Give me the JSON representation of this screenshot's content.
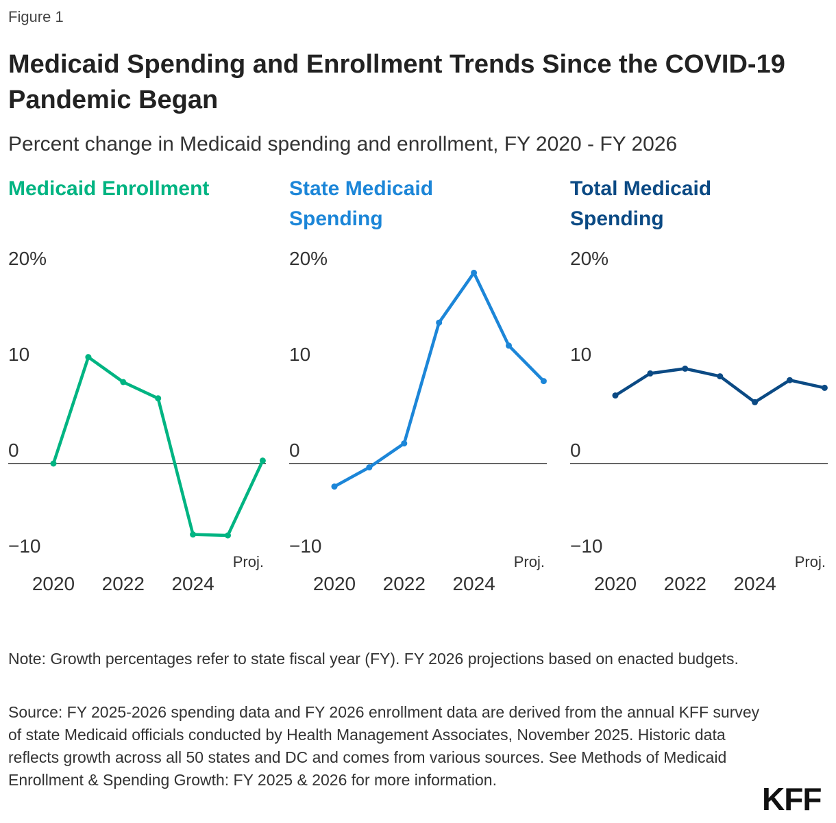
{
  "figure_label": "Figure 1",
  "title": "Medicaid Spending and Enrollment Trends Since the COVID-19 Pandemic Began",
  "subtitle": "Percent change in Medicaid spending and enrollment, FY 2020 - FY 2026",
  "chart_data": [
    {
      "type": "line",
      "title": "Medicaid Enrollment",
      "color": "#00b482",
      "x": [
        2020,
        2021,
        2022,
        2023,
        2024,
        2025,
        2026
      ],
      "values": [
        0.0,
        11.1,
        8.5,
        6.8,
        -7.4,
        -7.5,
        0.3
      ],
      "ylim": [
        -10,
        20
      ],
      "yticks": [
        "20%",
        "10",
        "0",
        "−10"
      ],
      "xticks": [
        "2020",
        "2022",
        "2024"
      ],
      "annotation": "Proj."
    },
    {
      "type": "line",
      "title": "State Medicaid Spending",
      "color": "#1c86d8",
      "x": [
        2020,
        2021,
        2022,
        2023,
        2024,
        2025,
        2026
      ],
      "values": [
        -2.4,
        -0.4,
        2.1,
        14.7,
        19.9,
        12.3,
        8.6
      ],
      "ylim": [
        -10,
        20
      ],
      "yticks": [
        "20%",
        "10",
        "0",
        "−10"
      ],
      "xticks": [
        "2020",
        "2022",
        "2024"
      ],
      "annotation": "Proj."
    },
    {
      "type": "line",
      "title": "Total Medicaid Spending",
      "color": "#0b4a84",
      "x": [
        2020,
        2021,
        2022,
        2023,
        2024,
        2025,
        2026
      ],
      "values": [
        7.1,
        9.4,
        9.9,
        9.1,
        6.4,
        8.7,
        7.9
      ],
      "ylim": [
        -10,
        20
      ],
      "yticks": [
        "20%",
        "10",
        "0",
        "−10"
      ],
      "xticks": [
        "2020",
        "2022",
        "2024"
      ],
      "annotation": "Proj."
    }
  ],
  "note": "Note: Growth percentages refer to state fiscal year (FY). FY 2026 projections based on enacted budgets.",
  "source": "Source: FY 2025-2026 spending data and FY 2026 enrollment data are derived from the annual KFF survey of state Medicaid officials conducted by Health Management Associates, November 2025. Historic data reflects growth across all 50 states and DC and comes from various sources. See Methods of Medicaid Enrollment & Spending Growth: FY 2025 & 2026 for more information.",
  "logo": "KFF"
}
